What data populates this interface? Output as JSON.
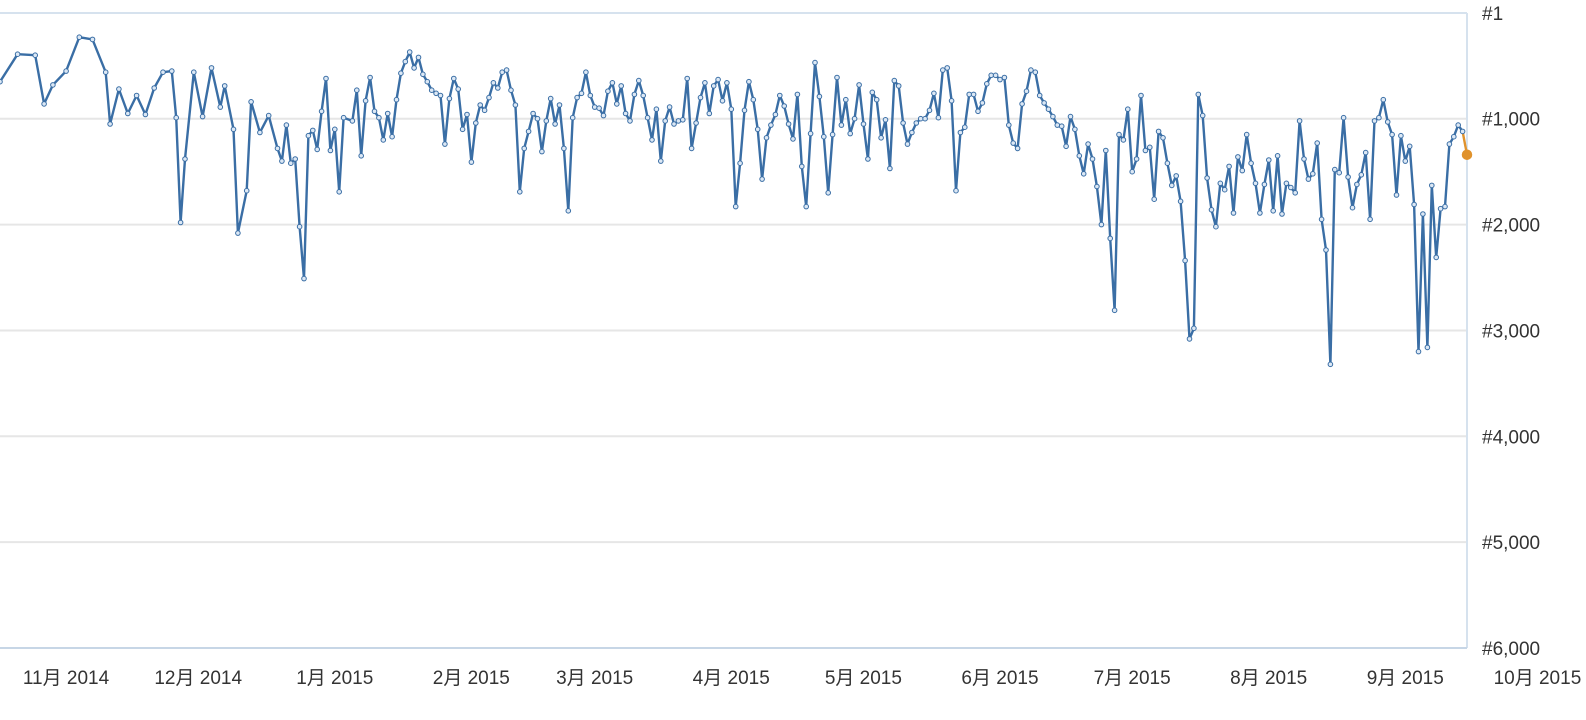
{
  "chart_data": {
    "type": "line",
    "title": "",
    "xlabel": "",
    "ylabel": "",
    "y_axis": {
      "position": "right",
      "inverted": true,
      "min": 1,
      "max": 6000,
      "tick_labels": [
        "#1",
        "#1,000",
        "#2,000",
        "#3,000",
        "#4,000",
        "#5,000",
        "#6,000"
      ],
      "tick_values": [
        1,
        1000,
        2000,
        3000,
        4000,
        5000,
        6000
      ]
    },
    "x_axis": {
      "type": "date",
      "range": [
        "2014-10-27",
        "2015-10-27"
      ],
      "tick_labels": [
        "11月 2014",
        "12月 2014",
        "1月 2015",
        "2月 2015",
        "3月 2015",
        "4月 2015",
        "5月 2015",
        "6月 2015",
        "7月 2015",
        "8月 2015",
        "9月 2015",
        "10月 2015"
      ]
    },
    "grid": true,
    "legend": "none",
    "series": [
      {
        "color": "#3a6ea5",
        "values": [
          [
            0,
            650
          ],
          [
            4,
            390
          ],
          [
            8,
            400
          ],
          [
            10,
            860
          ],
          [
            12,
            680
          ],
          [
            15,
            550
          ],
          [
            18,
            230
          ],
          [
            21,
            250
          ],
          [
            24,
            560
          ],
          [
            25,
            1050
          ],
          [
            27,
            720
          ],
          [
            29,
            950
          ],
          [
            31,
            780
          ],
          [
            33,
            960
          ],
          [
            35,
            710
          ],
          [
            37,
            560
          ],
          [
            39,
            550
          ],
          [
            40,
            990
          ],
          [
            41,
            1980
          ],
          [
            42,
            1380
          ],
          [
            44,
            560
          ],
          [
            46,
            980
          ],
          [
            48,
            520
          ],
          [
            50,
            890
          ],
          [
            51,
            690
          ],
          [
            53,
            1100
          ],
          [
            54,
            2080
          ],
          [
            56,
            1680
          ],
          [
            57,
            840
          ],
          [
            59,
            1130
          ],
          [
            61,
            970
          ],
          [
            63,
            1280
          ],
          [
            64,
            1400
          ],
          [
            65,
            1060
          ],
          [
            66,
            1420
          ],
          [
            67,
            1380
          ],
          [
            68,
            2020
          ],
          [
            69,
            2510
          ],
          [
            70,
            1160
          ],
          [
            71,
            1110
          ],
          [
            72,
            1290
          ],
          [
            73,
            930
          ],
          [
            74,
            620
          ],
          [
            75,
            1300
          ],
          [
            76,
            1100
          ],
          [
            77,
            1690
          ],
          [
            78,
            990
          ],
          [
            80,
            1020
          ],
          [
            81,
            730
          ],
          [
            82,
            1350
          ],
          [
            83,
            830
          ],
          [
            84,
            610
          ],
          [
            85,
            930
          ],
          [
            86,
            990
          ],
          [
            87,
            1200
          ],
          [
            88,
            950
          ],
          [
            89,
            1170
          ],
          [
            90,
            820
          ],
          [
            91,
            570
          ],
          [
            92,
            460
          ],
          [
            93,
            370
          ],
          [
            94,
            520
          ],
          [
            95,
            420
          ],
          [
            96,
            580
          ],
          [
            97,
            650
          ],
          [
            98,
            730
          ],
          [
            99,
            760
          ],
          [
            100,
            780
          ],
          [
            101,
            1240
          ],
          [
            102,
            810
          ],
          [
            103,
            620
          ],
          [
            104,
            720
          ],
          [
            105,
            1100
          ],
          [
            106,
            960
          ],
          [
            107,
            1410
          ],
          [
            108,
            1040
          ],
          [
            109,
            870
          ],
          [
            110,
            920
          ],
          [
            111,
            800
          ],
          [
            112,
            660
          ],
          [
            113,
            710
          ],
          [
            114,
            560
          ],
          [
            115,
            540
          ],
          [
            116,
            730
          ],
          [
            117,
            870
          ],
          [
            118,
            1690
          ],
          [
            119,
            1280
          ],
          [
            120,
            1120
          ],
          [
            121,
            950
          ],
          [
            122,
            1000
          ],
          [
            123,
            1310
          ],
          [
            124,
            1020
          ],
          [
            125,
            810
          ],
          [
            126,
            1050
          ],
          [
            127,
            870
          ],
          [
            128,
            1280
          ],
          [
            129,
            1870
          ],
          [
            130,
            990
          ],
          [
            131,
            800
          ],
          [
            132,
            760
          ],
          [
            133,
            560
          ],
          [
            134,
            780
          ],
          [
            135,
            890
          ],
          [
            136,
            900
          ],
          [
            137,
            970
          ],
          [
            138,
            740
          ],
          [
            139,
            660
          ],
          [
            140,
            860
          ],
          [
            141,
            690
          ],
          [
            142,
            950
          ],
          [
            143,
            1020
          ],
          [
            144,
            770
          ],
          [
            145,
            640
          ],
          [
            146,
            780
          ],
          [
            147,
            990
          ],
          [
            148,
            1200
          ],
          [
            149,
            910
          ],
          [
            150,
            1400
          ],
          [
            151,
            1020
          ],
          [
            152,
            890
          ],
          [
            153,
            1050
          ],
          [
            154,
            1020
          ],
          [
            155,
            1010
          ],
          [
            156,
            620
          ],
          [
            157,
            1280
          ],
          [
            158,
            1040
          ],
          [
            159,
            800
          ],
          [
            160,
            660
          ],
          [
            161,
            950
          ],
          [
            162,
            690
          ],
          [
            163,
            630
          ],
          [
            164,
            830
          ],
          [
            165,
            660
          ],
          [
            166,
            910
          ],
          [
            167,
            1830
          ],
          [
            168,
            1420
          ],
          [
            169,
            920
          ],
          [
            170,
            650
          ],
          [
            171,
            820
          ],
          [
            172,
            1100
          ],
          [
            173,
            1570
          ],
          [
            174,
            1180
          ],
          [
            175,
            1060
          ],
          [
            176,
            960
          ],
          [
            177,
            780
          ],
          [
            178,
            880
          ],
          [
            179,
            1050
          ],
          [
            180,
            1190
          ],
          [
            181,
            770
          ],
          [
            182,
            1450
          ],
          [
            183,
            1830
          ],
          [
            184,
            1140
          ],
          [
            185,
            470
          ],
          [
            186,
            790
          ],
          [
            187,
            1170
          ],
          [
            188,
            1700
          ],
          [
            189,
            1150
          ],
          [
            190,
            610
          ],
          [
            191,
            1060
          ],
          [
            192,
            820
          ],
          [
            193,
            1140
          ],
          [
            194,
            1000
          ],
          [
            195,
            680
          ],
          [
            196,
            1050
          ],
          [
            197,
            1380
          ],
          [
            198,
            750
          ],
          [
            199,
            820
          ],
          [
            200,
            1180
          ],
          [
            201,
            1010
          ],
          [
            202,
            1470
          ],
          [
            203,
            640
          ],
          [
            204,
            690
          ],
          [
            205,
            1040
          ],
          [
            206,
            1240
          ],
          [
            207,
            1130
          ],
          [
            208,
            1040
          ],
          [
            209,
            1000
          ],
          [
            210,
            1000
          ],
          [
            211,
            920
          ],
          [
            212,
            760
          ],
          [
            213,
            990
          ],
          [
            214,
            540
          ],
          [
            215,
            520
          ],
          [
            216,
            830
          ],
          [
            217,
            1680
          ],
          [
            218,
            1130
          ],
          [
            219,
            1080
          ],
          [
            220,
            770
          ],
          [
            221,
            770
          ],
          [
            222,
            930
          ],
          [
            223,
            850
          ],
          [
            224,
            670
          ],
          [
            225,
            590
          ],
          [
            226,
            590
          ],
          [
            227,
            630
          ],
          [
            228,
            610
          ],
          [
            229,
            1060
          ],
          [
            230,
            1230
          ],
          [
            231,
            1280
          ],
          [
            232,
            860
          ],
          [
            233,
            740
          ],
          [
            234,
            540
          ],
          [
            235,
            560
          ],
          [
            236,
            780
          ],
          [
            237,
            850
          ],
          [
            238,
            910
          ],
          [
            239,
            980
          ],
          [
            240,
            1060
          ],
          [
            241,
            1070
          ],
          [
            242,
            1260
          ],
          [
            243,
            980
          ],
          [
            244,
            1100
          ],
          [
            245,
            1350
          ],
          [
            246,
            1520
          ],
          [
            247,
            1240
          ],
          [
            248,
            1380
          ],
          [
            249,
            1640
          ],
          [
            250,
            2000
          ],
          [
            251,
            1300
          ],
          [
            252,
            2130
          ],
          [
            253,
            2810
          ],
          [
            254,
            1150
          ],
          [
            255,
            1200
          ],
          [
            256,
            910
          ],
          [
            257,
            1500
          ],
          [
            258,
            1380
          ],
          [
            259,
            780
          ],
          [
            260,
            1300
          ],
          [
            261,
            1270
          ],
          [
            262,
            1760
          ],
          [
            263,
            1120
          ],
          [
            264,
            1180
          ],
          [
            265,
            1420
          ],
          [
            266,
            1630
          ],
          [
            267,
            1540
          ],
          [
            268,
            1780
          ],
          [
            269,
            2340
          ],
          [
            270,
            3080
          ],
          [
            271,
            2980
          ],
          [
            272,
            770
          ],
          [
            273,
            970
          ],
          [
            274,
            1560
          ],
          [
            275,
            1860
          ],
          [
            276,
            2020
          ],
          [
            277,
            1610
          ],
          [
            278,
            1670
          ],
          [
            279,
            1450
          ],
          [
            280,
            1890
          ],
          [
            281,
            1360
          ],
          [
            282,
            1490
          ],
          [
            283,
            1150
          ],
          [
            284,
            1420
          ],
          [
            285,
            1610
          ],
          [
            286,
            1890
          ],
          [
            287,
            1620
          ],
          [
            288,
            1390
          ],
          [
            289,
            1870
          ],
          [
            290,
            1350
          ],
          [
            291,
            1900
          ],
          [
            292,
            1610
          ],
          [
            293,
            1650
          ],
          [
            294,
            1700
          ],
          [
            295,
            1020
          ],
          [
            296,
            1380
          ],
          [
            297,
            1570
          ],
          [
            298,
            1520
          ],
          [
            299,
            1230
          ],
          [
            300,
            1950
          ],
          [
            301,
            2240
          ],
          [
            302,
            3320
          ],
          [
            303,
            1480
          ],
          [
            304,
            1510
          ],
          [
            305,
            990
          ],
          [
            306,
            1550
          ],
          [
            307,
            1840
          ],
          [
            308,
            1620
          ],
          [
            309,
            1530
          ],
          [
            310,
            1320
          ],
          [
            311,
            1950
          ],
          [
            312,
            1020
          ],
          [
            313,
            990
          ],
          [
            314,
            820
          ],
          [
            315,
            1030
          ],
          [
            316,
            1150
          ],
          [
            317,
            1720
          ],
          [
            318,
            1160
          ],
          [
            319,
            1400
          ],
          [
            320,
            1260
          ],
          [
            321,
            1810
          ],
          [
            322,
            3200
          ],
          [
            323,
            1900
          ],
          [
            324,
            3160
          ],
          [
            325,
            1630
          ],
          [
            326,
            2310
          ],
          [
            327,
            1850
          ],
          [
            328,
            1830
          ],
          [
            329,
            1240
          ],
          [
            330,
            1170
          ],
          [
            331,
            1060
          ],
          [
            332,
            1120
          ]
        ]
      },
      {
        "color": "#e0922c",
        "values": [
          [
            332,
            1120
          ],
          [
            333,
            1340
          ]
        ]
      }
    ]
  }
}
